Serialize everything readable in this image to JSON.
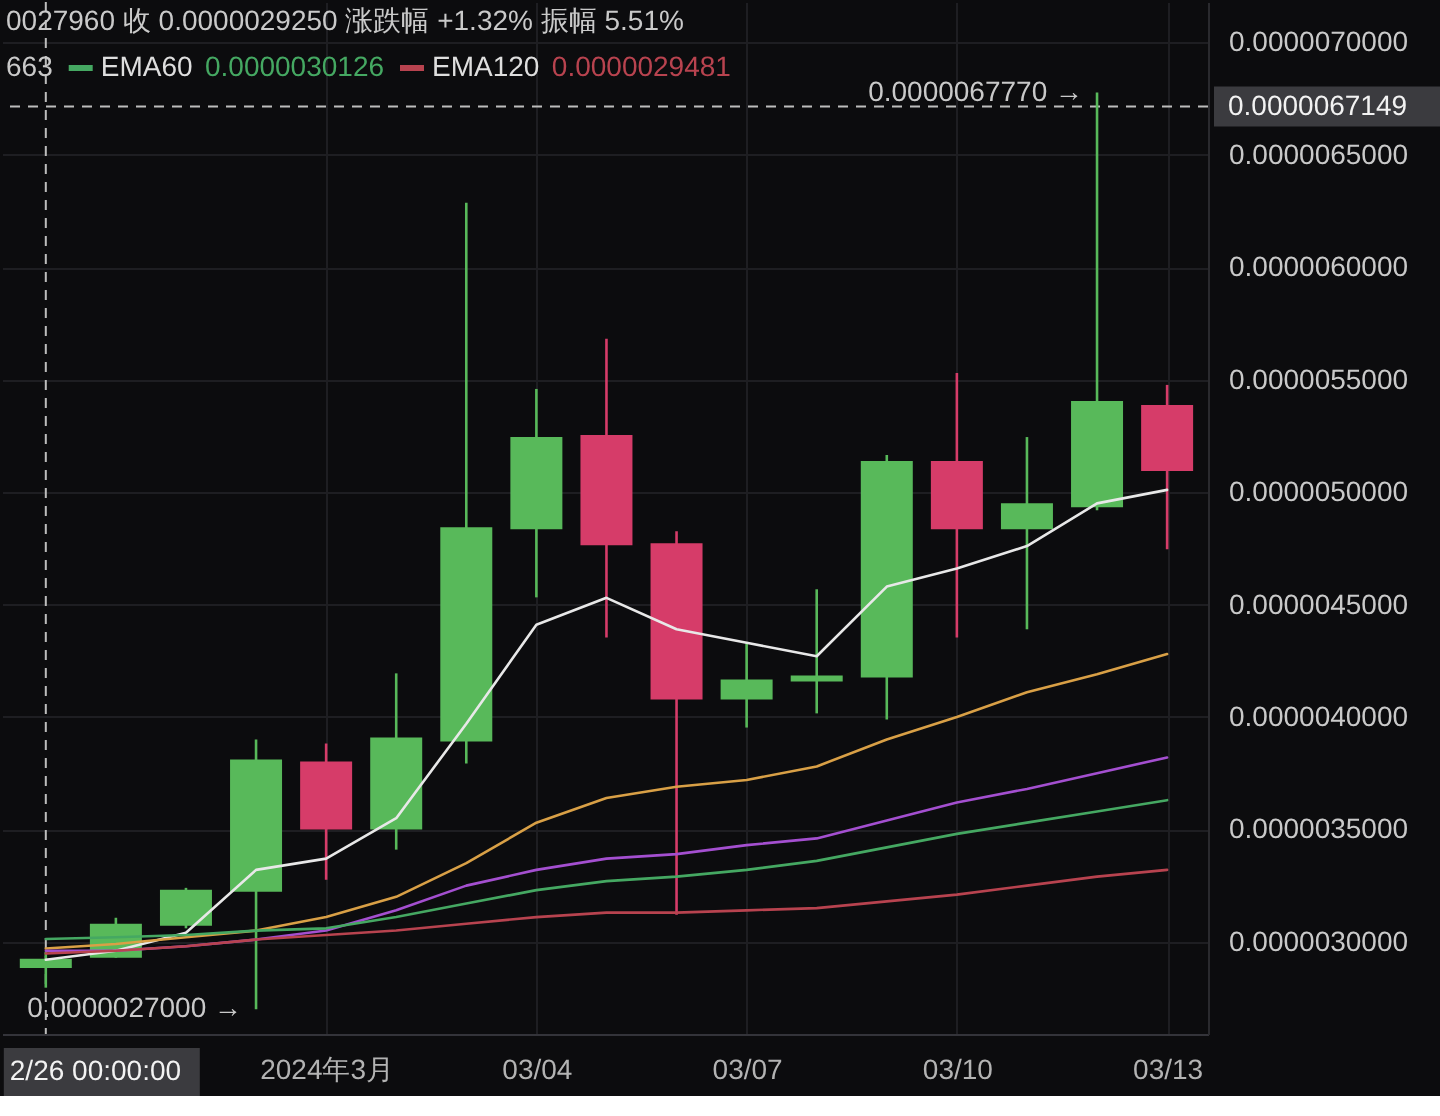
{
  "chart_data": {
    "type": "candlestick",
    "x": [
      "2024-02-26",
      "2024-02-27",
      "2024-02-28",
      "2024-02-29",
      "2024-03-01",
      "2024-03-02",
      "2024-03-03",
      "2024-03-04",
      "2024-03-05",
      "2024-03-06",
      "2024-03-07",
      "2024-03-08",
      "2024-03-09",
      "2024-03-10",
      "2024-03-11",
      "2024-03-12",
      "2024-03-13"
    ],
    "ohlc": [
      [
        2.884e-06,
        2.955e-06,
        2.796e-06,
        2.925e-06
      ],
      [
        2.929e-06,
        3.107e-06,
        2.929e-06,
        3.08e-06
      ],
      [
        3.071e-06,
        3.24e-06,
        3.06e-06,
        3.232e-06
      ],
      [
        3.223e-06,
        3.9e-06,
        2.7e-06,
        3.811e-06
      ],
      [
        3.802e-06,
        3.882e-06,
        3.276e-06,
        3.499e-06
      ],
      [
        3.499e-06,
        4.194e-06,
        3.41e-06,
        3.909e-06
      ],
      [
        3.891e-06,
        6.287e-06,
        3.793e-06,
        4.844e-06
      ],
      [
        4.835e-06,
        5.459e-06,
        4.532e-06,
        5.245e-06
      ],
      [
        5.254e-06,
        5.682e-06,
        4.354e-06,
        4.764e-06
      ],
      [
        4.773e-06,
        4.826e-06,
        3.12e-06,
        4.078e-06
      ],
      [
        4.078e-06,
        4.327e-06,
        3.953e-06,
        4.167e-06
      ],
      [
        4.158e-06,
        4.568e-06,
        4.016e-06,
        4.185e-06
      ],
      [
        4.176e-06,
        5.165e-06,
        3.989e-06,
        5.138e-06
      ],
      [
        5.138e-06,
        5.53e-06,
        4.354e-06,
        4.835e-06
      ],
      [
        4.835e-06,
        5.245e-06,
        4.39e-06,
        4.951e-06
      ],
      [
        4.933e-06,
        6.777e-06,
        4.92e-06,
        5.405e-06
      ],
      [
        5.388e-06,
        5.477e-06,
        4.746e-06,
        5.094e-06
      ]
    ],
    "colors": [
      "#58b95a",
      "#58b95a",
      "#58b95a",
      "#58b95a",
      "#d63c69",
      "#58b95a",
      "#58b95a",
      "#58b95a",
      "#d63c69",
      "#d63c69",
      "#58b95a",
      "#58b95a",
      "#58b95a",
      "#d63c69",
      "#58b95a",
      "#58b95a",
      "#d63c69"
    ],
    "series": [
      {
        "type": "line",
        "color": "#e8e8e8",
        "values": [
          2.92e-06,
          2.96e-06,
          3.04e-06,
          3.32e-06,
          3.37e-06,
          3.55e-06,
          3.97e-06,
          4.41e-06,
          4.53e-06,
          4.39e-06,
          4.33e-06,
          4.27e-06,
          4.58e-06,
          4.66e-06,
          4.76e-06,
          4.95e-06,
          5.01e-06
        ]
      },
      {
        "type": "line",
        "color": "#d9a046",
        "values": [
          2.97e-06,
          2.99e-06,
          3.02e-06,
          3.05e-06,
          3.11e-06,
          3.2e-06,
          3.35e-06,
          3.53e-06,
          3.64e-06,
          3.69e-06,
          3.72e-06,
          3.78e-06,
          3.9e-06,
          4e-06,
          4.11e-06,
          4.19e-06,
          4.28e-06
        ]
      },
      {
        "type": "line",
        "color": "#a44fd0",
        "values": [
          2.96e-06,
          2.96e-06,
          2.98e-06,
          3.01e-06,
          3.05e-06,
          3.14e-06,
          3.25e-06,
          3.32e-06,
          3.37e-06,
          3.39e-06,
          3.43e-06,
          3.46e-06,
          3.54e-06,
          3.62e-06,
          3.68e-06,
          3.75e-06,
          3.82e-06
        ]
      },
      {
        "name": "EMA60",
        "type": "line",
        "color": "#45a862",
        "values": [
          3.0126e-06,
          3.02e-06,
          3.03e-06,
          3.05e-06,
          3.06e-06,
          3.11e-06,
          3.17e-06,
          3.23e-06,
          3.27e-06,
          3.29e-06,
          3.32e-06,
          3.36e-06,
          3.42e-06,
          3.48e-06,
          3.53e-06,
          3.58e-06,
          3.63e-06
        ]
      },
      {
        "name": "EMA120",
        "type": "line",
        "color": "#b8434f",
        "values": [
          2.9481e-06,
          2.96e-06,
          2.98e-06,
          3.01e-06,
          3.03e-06,
          3.05e-06,
          3.08e-06,
          3.11e-06,
          3.13e-06,
          3.13e-06,
          3.14e-06,
          3.15e-06,
          3.18e-06,
          3.21e-06,
          3.25e-06,
          3.29e-06,
          3.32e-06
        ]
      }
    ],
    "xlim": [
      "2024-02-25T09:00",
      "2024-03-13T14:00"
    ],
    "xticks": [
      {
        "value": "2024-03-01",
        "label": "2024年3月"
      },
      {
        "value": "2024-03-04",
        "label": "03/04"
      },
      {
        "value": "2024-03-07",
        "label": "03/07"
      },
      {
        "value": "2024-03-10",
        "label": "03/10"
      },
      {
        "value": "2024-03-13",
        "label": "03/13"
      }
    ],
    "ylim": [
      2.59e-06,
      7.18e-06
    ],
    "yticks": [
      {
        "value": 3e-06,
        "label": "0.0000030000"
      },
      {
        "value": 3.5e-06,
        "label": "0.0000035000"
      },
      {
        "value": 4e-06,
        "label": "0.0000040000"
      },
      {
        "value": 4.5e-06,
        "label": "0.0000045000"
      },
      {
        "value": 5e-06,
        "label": "0.0000050000"
      },
      {
        "value": 5.5e-06,
        "label": "0.0000055000"
      },
      {
        "value": 6e-06,
        "label": "0.0000060000"
      },
      {
        "value": 6.5e-06,
        "label": "0.0000065000"
      },
      {
        "value": 7e-06,
        "label": "0.0000070000"
      }
    ],
    "grid": true,
    "legend": "top left",
    "ref_lines": [
      {
        "axis": "y",
        "value": 6.7149e-06,
        "label": "0.0000067149",
        "color": "#bdbdbd",
        "line_style": "dashed"
      },
      {
        "axis": "x",
        "value": "2024-02-26",
        "label": "2/26 00:00:00",
        "color": "#bdbdbd",
        "line_style": "dashed"
      }
    ],
    "annotations": [
      "0027960 收 0.0000029250 涨跌幅 +1.32% 振幅 5.51%",
      "663",
      "0.0000030126",
      "0.0000029481",
      {
        "text": "0.0000067770 →",
        "x": "2024-03-12",
        "y": 6.777e-06
      },
      {
        "text": "0.0000027000 →",
        "x": "2024-02-29",
        "y": 2.7e-06
      }
    ]
  }
}
